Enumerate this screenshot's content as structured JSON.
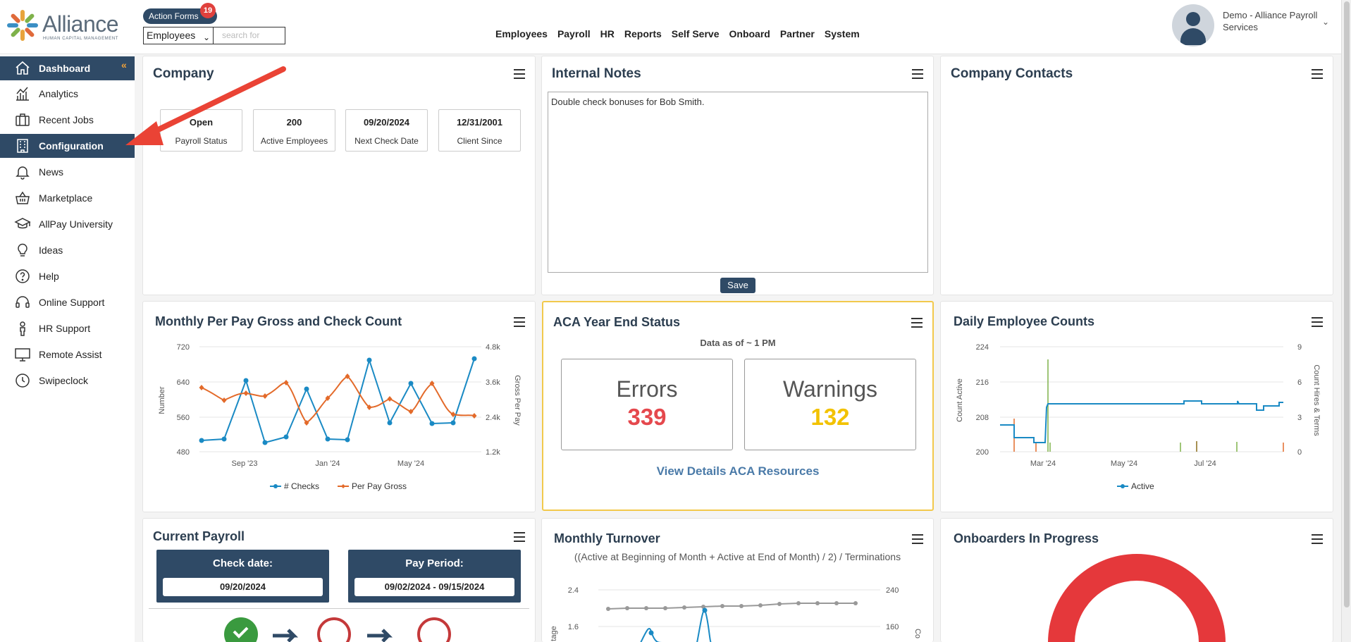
{
  "header": {
    "logo_text": "Alliance",
    "logo_sub": "HUMAN CAPITAL MANAGEMENT",
    "action_forms_label": "Action Forms",
    "action_forms_count": "19",
    "employee_select": "Employees",
    "search_placeholder": "search for",
    "nav": [
      "Employees",
      "Payroll",
      "HR",
      "Reports",
      "Self Serve",
      "Onboard",
      "Partner",
      "System"
    ],
    "user_name": "Demo - Alliance Payroll Services"
  },
  "sidebar": {
    "items": [
      {
        "label": "Dashboard",
        "icon": "home-icon",
        "active": true
      },
      {
        "label": "Analytics",
        "icon": "analytics-icon"
      },
      {
        "label": "Recent Jobs",
        "icon": "briefcase-icon"
      },
      {
        "label": "Configuration",
        "icon": "building-icon",
        "active": true
      },
      {
        "label": "News",
        "icon": "bell-icon"
      },
      {
        "label": "Marketplace",
        "icon": "basket-icon"
      },
      {
        "label": "AllPay University",
        "icon": "graduation-cap-icon"
      },
      {
        "label": "Ideas",
        "icon": "lightbulb-icon"
      },
      {
        "label": "Help",
        "icon": "help-icon"
      },
      {
        "label": "Online Support",
        "icon": "headset-icon"
      },
      {
        "label": "HR Support",
        "icon": "person-icon"
      },
      {
        "label": "Remote Assist",
        "icon": "monitor-icon"
      },
      {
        "label": "Swipeclock",
        "icon": "clock-icon"
      }
    ]
  },
  "company": {
    "title": "Company",
    "stats": [
      {
        "value": "Open",
        "label": "Payroll Status"
      },
      {
        "value": "200",
        "label": "Active Employees"
      },
      {
        "value": "09/20/2024",
        "label": "Next Check Date"
      },
      {
        "value": "12/31/2001",
        "label": "Client Since"
      }
    ]
  },
  "notes": {
    "title": "Internal Notes",
    "text": "Double check bonuses for Bob Smith.",
    "save_label": "Save"
  },
  "contacts": {
    "title": "Company Contacts"
  },
  "monthly_gross": {
    "title": "Monthly Per Pay Gross and Check Count",
    "left_ticks": [
      "720",
      "640",
      "560",
      "480"
    ],
    "right_ticks": [
      "4.8k",
      "3.6k",
      "2.4k",
      "1.2k"
    ],
    "x_ticks": [
      "Sep '23",
      "Jan '24",
      "May '24"
    ],
    "left_label": "Number",
    "right_label": "Gross Per Pay",
    "legend": [
      "# Checks",
      "Per Pay Gross"
    ]
  },
  "aca": {
    "title": "ACA Year End Status",
    "subtitle": "Data as of ~ 1 PM",
    "errors_label": "Errors",
    "errors_value": "339",
    "warnings_label": "Warnings",
    "warnings_value": "132",
    "link_label": "View Details ACA Resources"
  },
  "daily": {
    "title": "Daily Employee Counts",
    "left_ticks": [
      "224",
      "216",
      "208",
      "200"
    ],
    "right_ticks": [
      "9",
      "6",
      "3",
      "0"
    ],
    "x_ticks": [
      "Mar '24",
      "May '24",
      "Jul '24"
    ],
    "left_label": "Count Active",
    "right_label": "Count Hires & Terms",
    "legend": [
      "Active"
    ]
  },
  "current_payroll": {
    "title": "Current Payroll",
    "check_label": "Check date:",
    "check_value": "09/20/2024",
    "period_label": "Pay Period:",
    "period_value": "09/02/2024 - 09/15/2024"
  },
  "turnover": {
    "title": "Monthly Turnover",
    "subtitle": "((Active at Beginning of Month + Active at End of Month) / 2) / Terminations",
    "left_ticks": [
      "2.4",
      "1.6"
    ],
    "right_ticks": [
      "240",
      "160"
    ],
    "left_label": "tage",
    "right_label": "Co"
  },
  "onboarders": {
    "title": "Onboarders In Progress"
  },
  "colors": {
    "navy": "#2f4a66",
    "checks_line": "#1a8ac4",
    "gross_line": "#e36a2a",
    "errors": "#e5484d",
    "warnings": "#f2c200",
    "aca_border": "#f2c94c"
  }
}
